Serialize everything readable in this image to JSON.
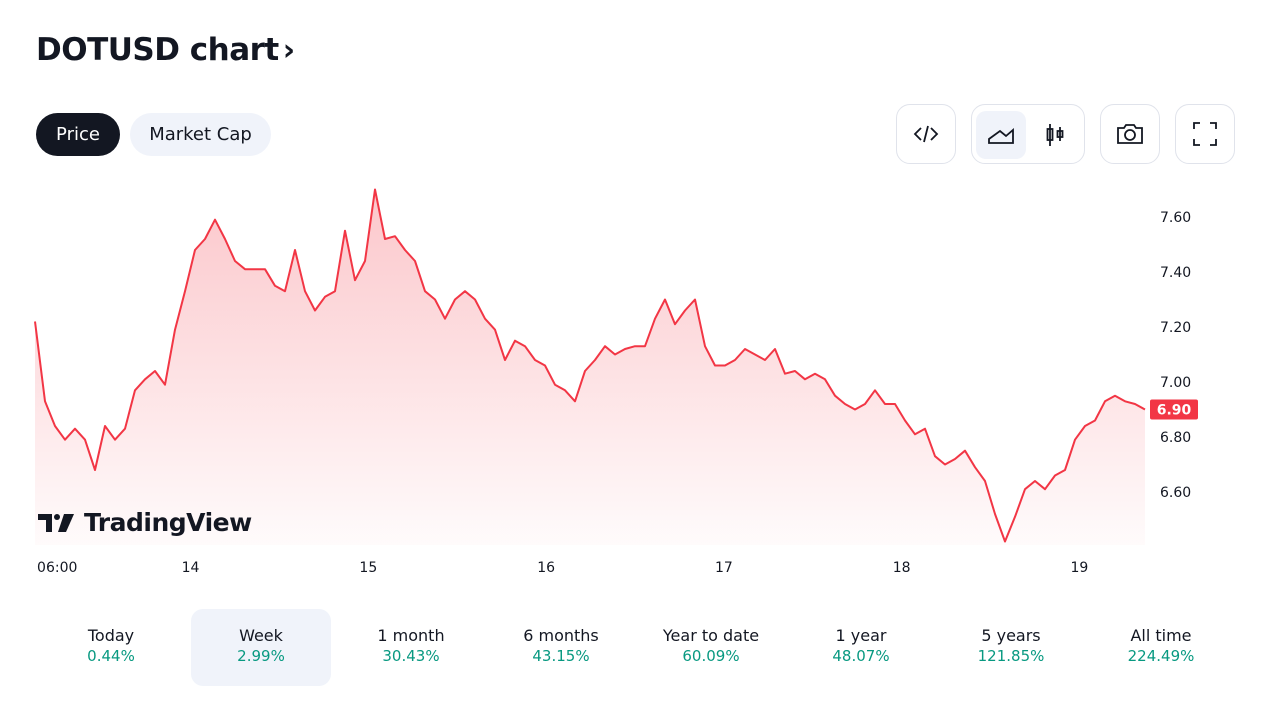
{
  "header": {
    "title": "DOTUSD chart",
    "chevron": "›"
  },
  "toggle": {
    "price": "Price",
    "market_cap": "Market Cap"
  },
  "toolbar": {
    "embed": "code-icon",
    "area": "area-chart-icon",
    "candles": "candlestick-icon",
    "snapshot": "camera-icon",
    "fullscreen": "fullscreen-icon"
  },
  "logo": {
    "text": "TradingView"
  },
  "colors": {
    "line": "#f23645",
    "up": "#089981",
    "dark": "#131722"
  },
  "chart_data": {
    "type": "area",
    "symbol": "DOTUSD",
    "x_unit": "hours since day 13 00:00",
    "start_hour": 3.0,
    "step_hours": 1.35,
    "prices": [
      7.22,
      6.93,
      6.84,
      6.79,
      6.83,
      6.79,
      6.68,
      6.84,
      6.79,
      6.83,
      6.97,
      7.01,
      7.04,
      6.99,
      7.19,
      7.33,
      7.48,
      7.52,
      7.59,
      7.52,
      7.44,
      7.41,
      7.41,
      7.41,
      7.35,
      7.33,
      7.48,
      7.33,
      7.26,
      7.31,
      7.33,
      7.55,
      7.37,
      7.44,
      7.7,
      7.52,
      7.53,
      7.48,
      7.44,
      7.33,
      7.3,
      7.23,
      7.3,
      7.33,
      7.3,
      7.23,
      7.19,
      7.08,
      7.15,
      7.13,
      7.08,
      7.06,
      6.99,
      6.97,
      6.93,
      7.04,
      7.08,
      7.13,
      7.1,
      7.12,
      7.13,
      7.13,
      7.23,
      7.3,
      7.21,
      7.26,
      7.3,
      7.13,
      7.06,
      7.06,
      7.08,
      7.12,
      7.1,
      7.08,
      7.12,
      7.03,
      7.04,
      7.01,
      7.03,
      7.01,
      6.95,
      6.92,
      6.9,
      6.92,
      6.97,
      6.92,
      6.92,
      6.86,
      6.81,
      6.83,
      6.73,
      6.7,
      6.72,
      6.75,
      6.69,
      6.64,
      6.52,
      6.42,
      6.51,
      6.61,
      6.64,
      6.61,
      6.66,
      6.68,
      6.79,
      6.84,
      6.86,
      6.93,
      6.95,
      6.93,
      6.92,
      6.9
    ],
    "y_ticks": [
      "7.60",
      "7.40",
      "7.20",
      "7.00",
      "6.80",
      "6.60"
    ],
    "y_tick_values": [
      7.6,
      7.4,
      7.2,
      7.0,
      6.8,
      6.6
    ],
    "x_ticks": [
      "06:00",
      "14",
      "15",
      "16",
      "17",
      "18",
      "19"
    ],
    "x_tick_hours": [
      6,
      24,
      48,
      72,
      96,
      120,
      144
    ],
    "last_price": "6.90",
    "last_price_value": 6.9,
    "ylim": [
      6.4,
      7.75
    ]
  },
  "periods": [
    {
      "label": "Today",
      "value": "0.44%"
    },
    {
      "label": "Week",
      "value": "2.99%"
    },
    {
      "label": "1 month",
      "value": "30.43%"
    },
    {
      "label": "6 months",
      "value": "43.15%"
    },
    {
      "label": "Year to date",
      "value": "60.09%"
    },
    {
      "label": "1 year",
      "value": "48.07%"
    },
    {
      "label": "5 years",
      "value": "121.85%"
    },
    {
      "label": "All time",
      "value": "224.49%"
    }
  ]
}
